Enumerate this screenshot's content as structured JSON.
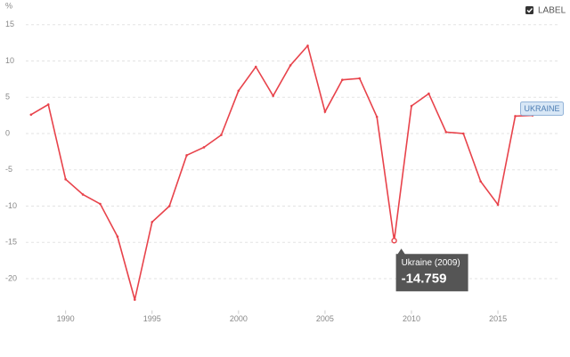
{
  "chart_data": {
    "type": "line",
    "y_label": "%",
    "label_toggle": "LABEL",
    "show_labels": true,
    "grid": true,
    "x": [
      1988,
      1989,
      1990,
      1991,
      1992,
      1993,
      1994,
      1995,
      1996,
      1997,
      1998,
      1999,
      2000,
      2001,
      2002,
      2003,
      2004,
      2005,
      2006,
      2007,
      2008,
      2009,
      2010,
      2011,
      2012,
      2013,
      2014,
      2015,
      2016,
      2017,
      2018
    ],
    "series": [
      {
        "name": "UKRAINE",
        "color": "#e8434b",
        "values": [
          2.6,
          4.0,
          -6.3,
          -8.4,
          -9.7,
          -14.2,
          -22.9,
          -12.2,
          -10.0,
          -3.0,
          -1.9,
          -0.2,
          5.9,
          9.2,
          5.2,
          9.4,
          12.1,
          3.0,
          7.4,
          7.6,
          2.3,
          -14.759,
          3.8,
          5.5,
          0.2,
          0.0,
          -6.6,
          -9.8,
          2.4,
          2.5,
          3.3
        ]
      }
    ],
    "xlim": [
      1987.7,
      2018.6
    ],
    "xticks": [
      1990,
      1995,
      2000,
      2005,
      2010,
      2015
    ],
    "ylim": [
      -24,
      16
    ],
    "yticks": [
      15,
      10,
      5,
      0,
      -5,
      -10,
      -15,
      -20
    ],
    "tooltip": {
      "title": "Ukraine (2009)",
      "point": 21
    }
  }
}
